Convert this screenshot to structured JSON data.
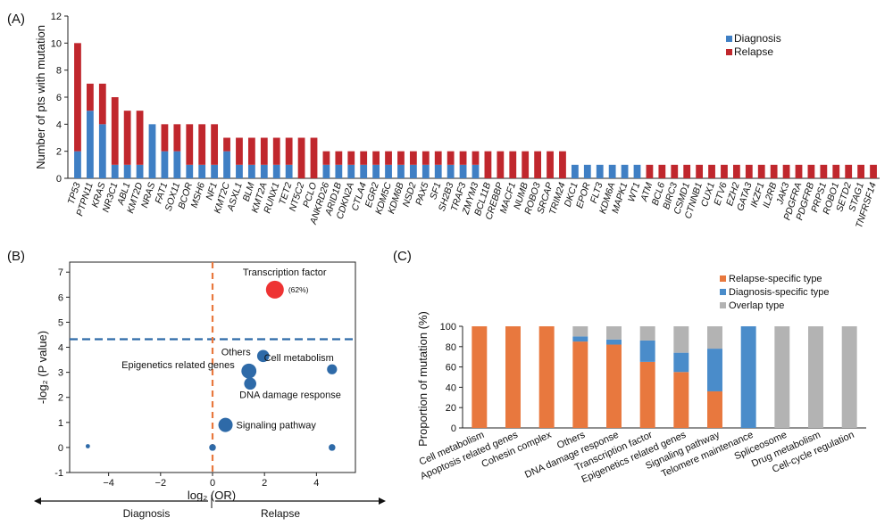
{
  "chart_data": [
    {
      "type": "bar",
      "panel": "(A)",
      "stacked": true,
      "ylabel": "Number of pts with mutation",
      "ylim": [
        0,
        12
      ],
      "yticks": [
        0,
        2,
        4,
        6,
        8,
        10,
        12
      ],
      "legend": {
        "position": "top-right",
        "entries": [
          "Diagnosis",
          "Relapse"
        ]
      },
      "colors": {
        "Diagnosis": "#3f7fc4",
        "Relapse": "#c0272d"
      },
      "categories": [
        "TP53",
        "PTPN11",
        "KRAS",
        "NR3C1",
        "ABL1",
        "KMT2D",
        "NRAS",
        "FAT1",
        "SOX11",
        "BCOR",
        "MSH6",
        "NF1",
        "KMT2C",
        "ASXL1",
        "BLM",
        "KMT2A",
        "RUNX1",
        "TET2",
        "NT5C2",
        "PCLO",
        "ANKRD26",
        "ARID1B",
        "CDKN2A",
        "CTLA4",
        "EGR2",
        "KDM5C",
        "KDM6B",
        "NSD2",
        "PAX5",
        "SF1",
        "SH2B3",
        "TRAF3",
        "ZMYM3",
        "BCL11B",
        "CREBBP",
        "MACF1",
        "NUMB",
        "ROBO3",
        "SRCAP",
        "TRIM24",
        "DKC1",
        "EPOR",
        "FLT3",
        "KDM6A",
        "MAPK1",
        "WT1",
        "ATM",
        "BCL6",
        "BIRC3",
        "CSMD1",
        "CTNNB1",
        "CUX1",
        "ETV6",
        "EZH2",
        "GATA3",
        "IKZF1",
        "IL2RB",
        "JAK3",
        "PDGFRA",
        "PDGFRB",
        "PRPS1",
        "ROBO1",
        "SETD2",
        "STAG1",
        "TNFRSF14"
      ],
      "series": [
        {
          "name": "Diagnosis",
          "values": [
            2,
            5,
            4,
            1,
            1,
            1,
            4,
            2,
            2,
            1,
            1,
            1,
            2,
            1,
            1,
            1,
            1,
            1,
            0,
            0,
            1,
            1,
            1,
            1,
            1,
            1,
            1,
            1,
            1,
            1,
            1,
            1,
            1,
            0,
            0,
            0,
            0,
            0,
            0,
            0,
            1,
            1,
            1,
            1,
            1,
            1,
            0,
            0,
            0,
            0,
            0,
            0,
            0,
            0,
            0,
            0,
            0,
            0,
            0,
            0,
            0,
            0,
            0,
            0,
            0
          ]
        },
        {
          "name": "Relapse",
          "values": [
            8,
            2,
            3,
            5,
            4,
            4,
            0,
            2,
            2,
            3,
            3,
            3,
            1,
            2,
            2,
            2,
            2,
            2,
            3,
            3,
            1,
            1,
            1,
            1,
            1,
            1,
            1,
            1,
            1,
            1,
            1,
            1,
            1,
            2,
            2,
            2,
            2,
            2,
            2,
            2,
            0,
            0,
            0,
            0,
            0,
            0,
            1,
            1,
            1,
            1,
            1,
            1,
            1,
            1,
            1,
            1,
            1,
            1,
            1,
            1,
            1,
            1,
            1,
            1,
            1
          ]
        }
      ]
    },
    {
      "type": "scatter",
      "panel": "(B)",
      "xlabel": "log₂ (OR)",
      "ylabel": "-log₂ (P value)",
      "xlim": [
        -5.5,
        5.5
      ],
      "ylim": [
        -1,
        7.4
      ],
      "xticks": [
        -4,
        -2,
        0,
        2,
        4
      ],
      "yticks": [
        -1,
        0,
        1,
        2,
        3,
        4,
        5,
        6,
        7
      ],
      "threshold_y": 4.32,
      "threshold_x": 0,
      "direction_labels": {
        "left": "Diagnosis",
        "right": "Relapse"
      },
      "points": [
        {
          "label": "Transcription factor",
          "note": "(62%)",
          "x": 2.4,
          "y": 6.3,
          "size": 1.0,
          "color": "#ee3333"
        },
        {
          "label": "Others",
          "note": "",
          "x": 1.95,
          "y": 3.65,
          "size": 0.6,
          "color": "#2e6aa8"
        },
        {
          "label": "Cell metabolism",
          "note": "",
          "x": 4.6,
          "y": 3.12,
          "size": 0.45,
          "color": "#2e6aa8"
        },
        {
          "label": "Epigenetics related genes",
          "note": "",
          "x": 1.4,
          "y": 3.05,
          "size": 0.8,
          "color": "#2e6aa8"
        },
        {
          "label": "DNA damage response",
          "note": "",
          "x": 1.45,
          "y": 2.55,
          "size": 0.6,
          "color": "#2e6aa8"
        },
        {
          "label": "Signaling pathway",
          "note": "",
          "x": 0.5,
          "y": 0.9,
          "size": 0.75,
          "color": "#2e6aa8"
        },
        {
          "label": "",
          "note": "",
          "x": 0.0,
          "y": 0.0,
          "size": 0.22,
          "color": "#2e6aa8"
        },
        {
          "label": "",
          "note": "",
          "x": 4.6,
          "y": 0.0,
          "size": 0.22,
          "color": "#2e6aa8"
        },
        {
          "label": "",
          "note": "",
          "x": -4.8,
          "y": 0.05,
          "size": 0.05,
          "color": "#2e6aa8"
        }
      ]
    },
    {
      "type": "bar",
      "panel": "(C)",
      "stacked": true,
      "ylabel": "Proportion of mutation (%)",
      "ylim": [
        0,
        100
      ],
      "yticks": [
        0,
        20,
        40,
        60,
        80,
        100
      ],
      "legend": {
        "position": "top-right",
        "entries": [
          "Relapse-specific type",
          "Diagnosis-specific type",
          "Overlap type"
        ]
      },
      "colors": {
        "Relapse-specific type": "#e8783e",
        "Diagnosis-specific type": "#4a8cca",
        "Overlap type": "#b3b3b3"
      },
      "categories": [
        "Cell metabolism",
        "Apoptosis related genes",
        "Cohesin complex",
        "Others",
        "DNA damage response",
        "Transcription factor",
        "Epigenetics related genes",
        "Signaling pathway",
        "Telomere maintenance",
        "Spliceosome",
        "Drug metabolism",
        "Cell-cycle regulation"
      ],
      "series": [
        {
          "name": "Relapse-specific type",
          "values": [
            100,
            100,
            100,
            85,
            82,
            65,
            55,
            36,
            0,
            0,
            0,
            0
          ]
        },
        {
          "name": "Diagnosis-specific type",
          "values": [
            0,
            0,
            0,
            5,
            5,
            21,
            19,
            42,
            100,
            0,
            0,
            0
          ]
        },
        {
          "name": "Overlap type",
          "values": [
            0,
            0,
            0,
            10,
            13,
            14,
            26,
            22,
            0,
            100,
            100,
            100
          ]
        }
      ]
    }
  ]
}
